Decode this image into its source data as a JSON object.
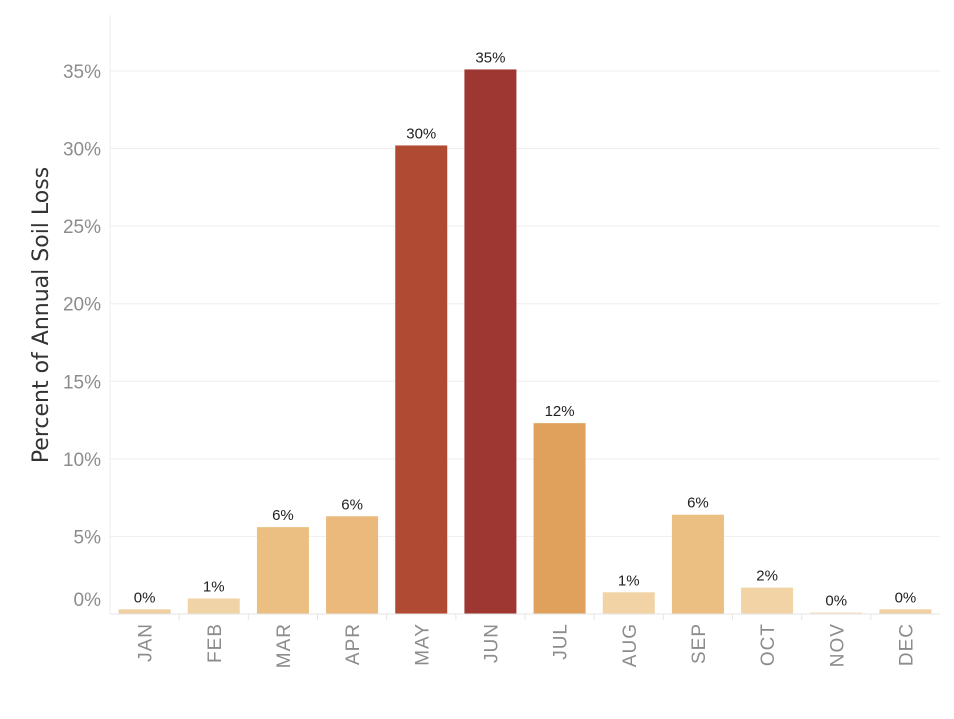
{
  "chart_data": {
    "type": "bar",
    "ylabel": "Percent of Annual Soil Loss",
    "xlabel": "",
    "categories": [
      "JAN",
      "FEB",
      "MAR",
      "APR",
      "MAY",
      "JUN",
      "JUL",
      "AUG",
      "SEP",
      "OCT",
      "NOV",
      "DEC"
    ],
    "values": [
      0.3,
      1.0,
      5.6,
      6.3,
      30.2,
      35.1,
      12.3,
      1.4,
      6.4,
      1.7,
      0.1,
      0.3
    ],
    "data_labels": [
      "0%",
      "1%",
      "6%",
      "6%",
      "30%",
      "35%",
      "12%",
      "1%",
      "6%",
      "2%",
      "0%",
      "0%"
    ],
    "ytick_values": [
      0,
      5,
      10,
      15,
      20,
      25,
      30,
      35
    ],
    "ytick_labels": [
      "0%",
      "5%",
      "10%",
      "15%",
      "20%",
      "25%",
      "30%",
      "35%"
    ],
    "ylim": [
      0,
      37
    ],
    "grid": true,
    "legend": "none",
    "bar_colors": [
      "#efcfa2",
      "#f0d3a6",
      "#ebbe81",
      "#eab97b",
      "#b14a33",
      "#9e3631",
      "#e0a15d",
      "#f1d3a6",
      "#ebbe81",
      "#f1d3a6",
      "#f4dfbe",
      "#f0cfa1"
    ]
  }
}
